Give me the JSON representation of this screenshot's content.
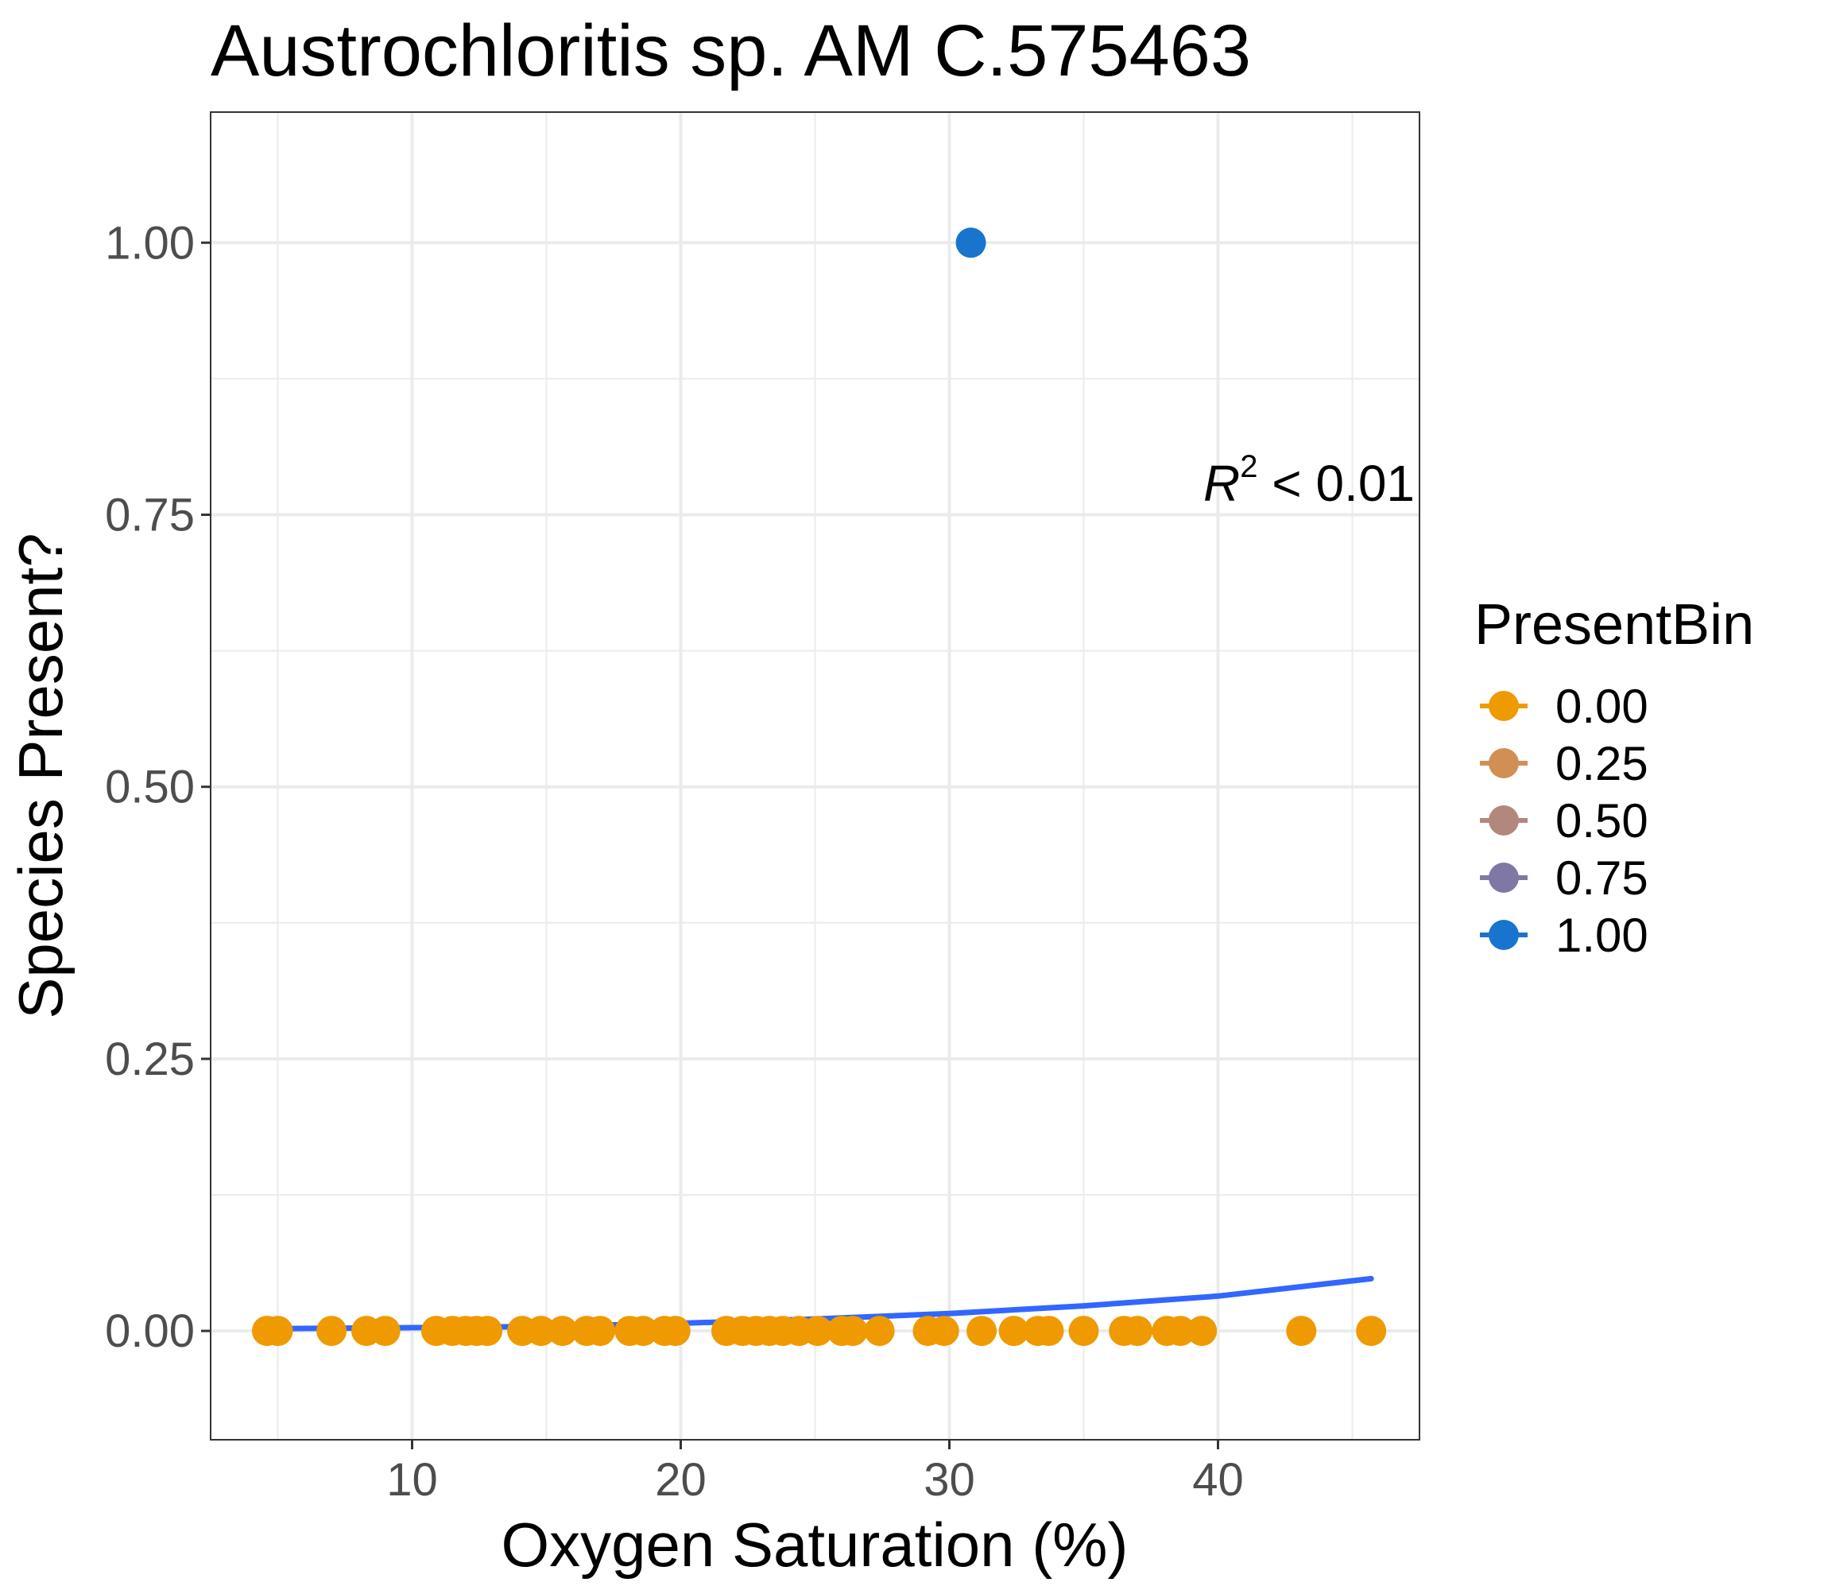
{
  "chart_data": {
    "type": "scatter",
    "title": "Austrochloritis sp. AM C.575463",
    "xlabel": "Oxygen Saturation (%)",
    "ylabel": "Species Present?",
    "xlim": [
      2.5,
      47.5
    ],
    "ylim": [
      -0.1,
      1.12
    ],
    "x_ticks": [
      10,
      20,
      30,
      40
    ],
    "x_tick_labels": [
      "10",
      "20",
      "30",
      "40"
    ],
    "y_ticks": [
      0,
      0.25,
      0.5,
      0.75,
      1.0
    ],
    "y_tick_labels": [
      "0.00",
      "0.25",
      "0.50",
      "0.75",
      "1.00"
    ],
    "grid": true,
    "legend": {
      "title": "PresentBin",
      "placement": "right",
      "entries": [
        {
          "label": "0.00",
          "color": "#EE9A00"
        },
        {
          "label": "0.25",
          "color": "#D18F54"
        },
        {
          "label": "0.50",
          "color": "#B2877D"
        },
        {
          "label": "0.75",
          "color": "#8078A4"
        },
        {
          "label": "1.00",
          "color": "#1874CD"
        }
      ]
    },
    "annotation": {
      "r_label": "R",
      "r_superscript": "2",
      "text_rest": " < 0.01"
    },
    "series": [
      {
        "color": "#EE9A00",
        "x": [
          4.6,
          5.0,
          7.0,
          8.3,
          9.0,
          10.9,
          11.5,
          12.0,
          12.4,
          12.8,
          14.1,
          14.8,
          15.6,
          16.5,
          17.0,
          18.1,
          18.6,
          19.4,
          19.8,
          21.7,
          22.3,
          22.8,
          23.3,
          23.8,
          24.4,
          25.1,
          26.0,
          26.4,
          27.4,
          29.2,
          29.8,
          31.2,
          32.4,
          33.3,
          33.7,
          35.0,
          36.5,
          37.0,
          38.1,
          38.6,
          39.4,
          43.1,
          45.7
        ],
        "y": [
          0,
          0,
          0,
          0,
          0,
          0,
          0,
          0,
          0,
          0,
          0,
          0,
          0,
          0,
          0,
          0,
          0,
          0,
          0,
          0,
          0,
          0,
          0,
          0,
          0,
          0,
          0,
          0,
          0,
          0,
          0,
          0,
          0,
          0,
          0,
          0,
          0,
          0,
          0,
          0,
          0,
          0,
          0
        ]
      },
      {
        "color": "#1874CD",
        "x": [
          30.8
        ],
        "y": [
          1.0
        ]
      },
      {
        "type": "line",
        "color": "#3366FF",
        "x": [
          4.6,
          10,
          15,
          20,
          25,
          30,
          35,
          40,
          45.7
        ],
        "y": [
          0.002,
          0.003,
          0.004,
          0.007,
          0.011,
          0.016,
          0.023,
          0.032,
          0.048
        ]
      }
    ]
  }
}
